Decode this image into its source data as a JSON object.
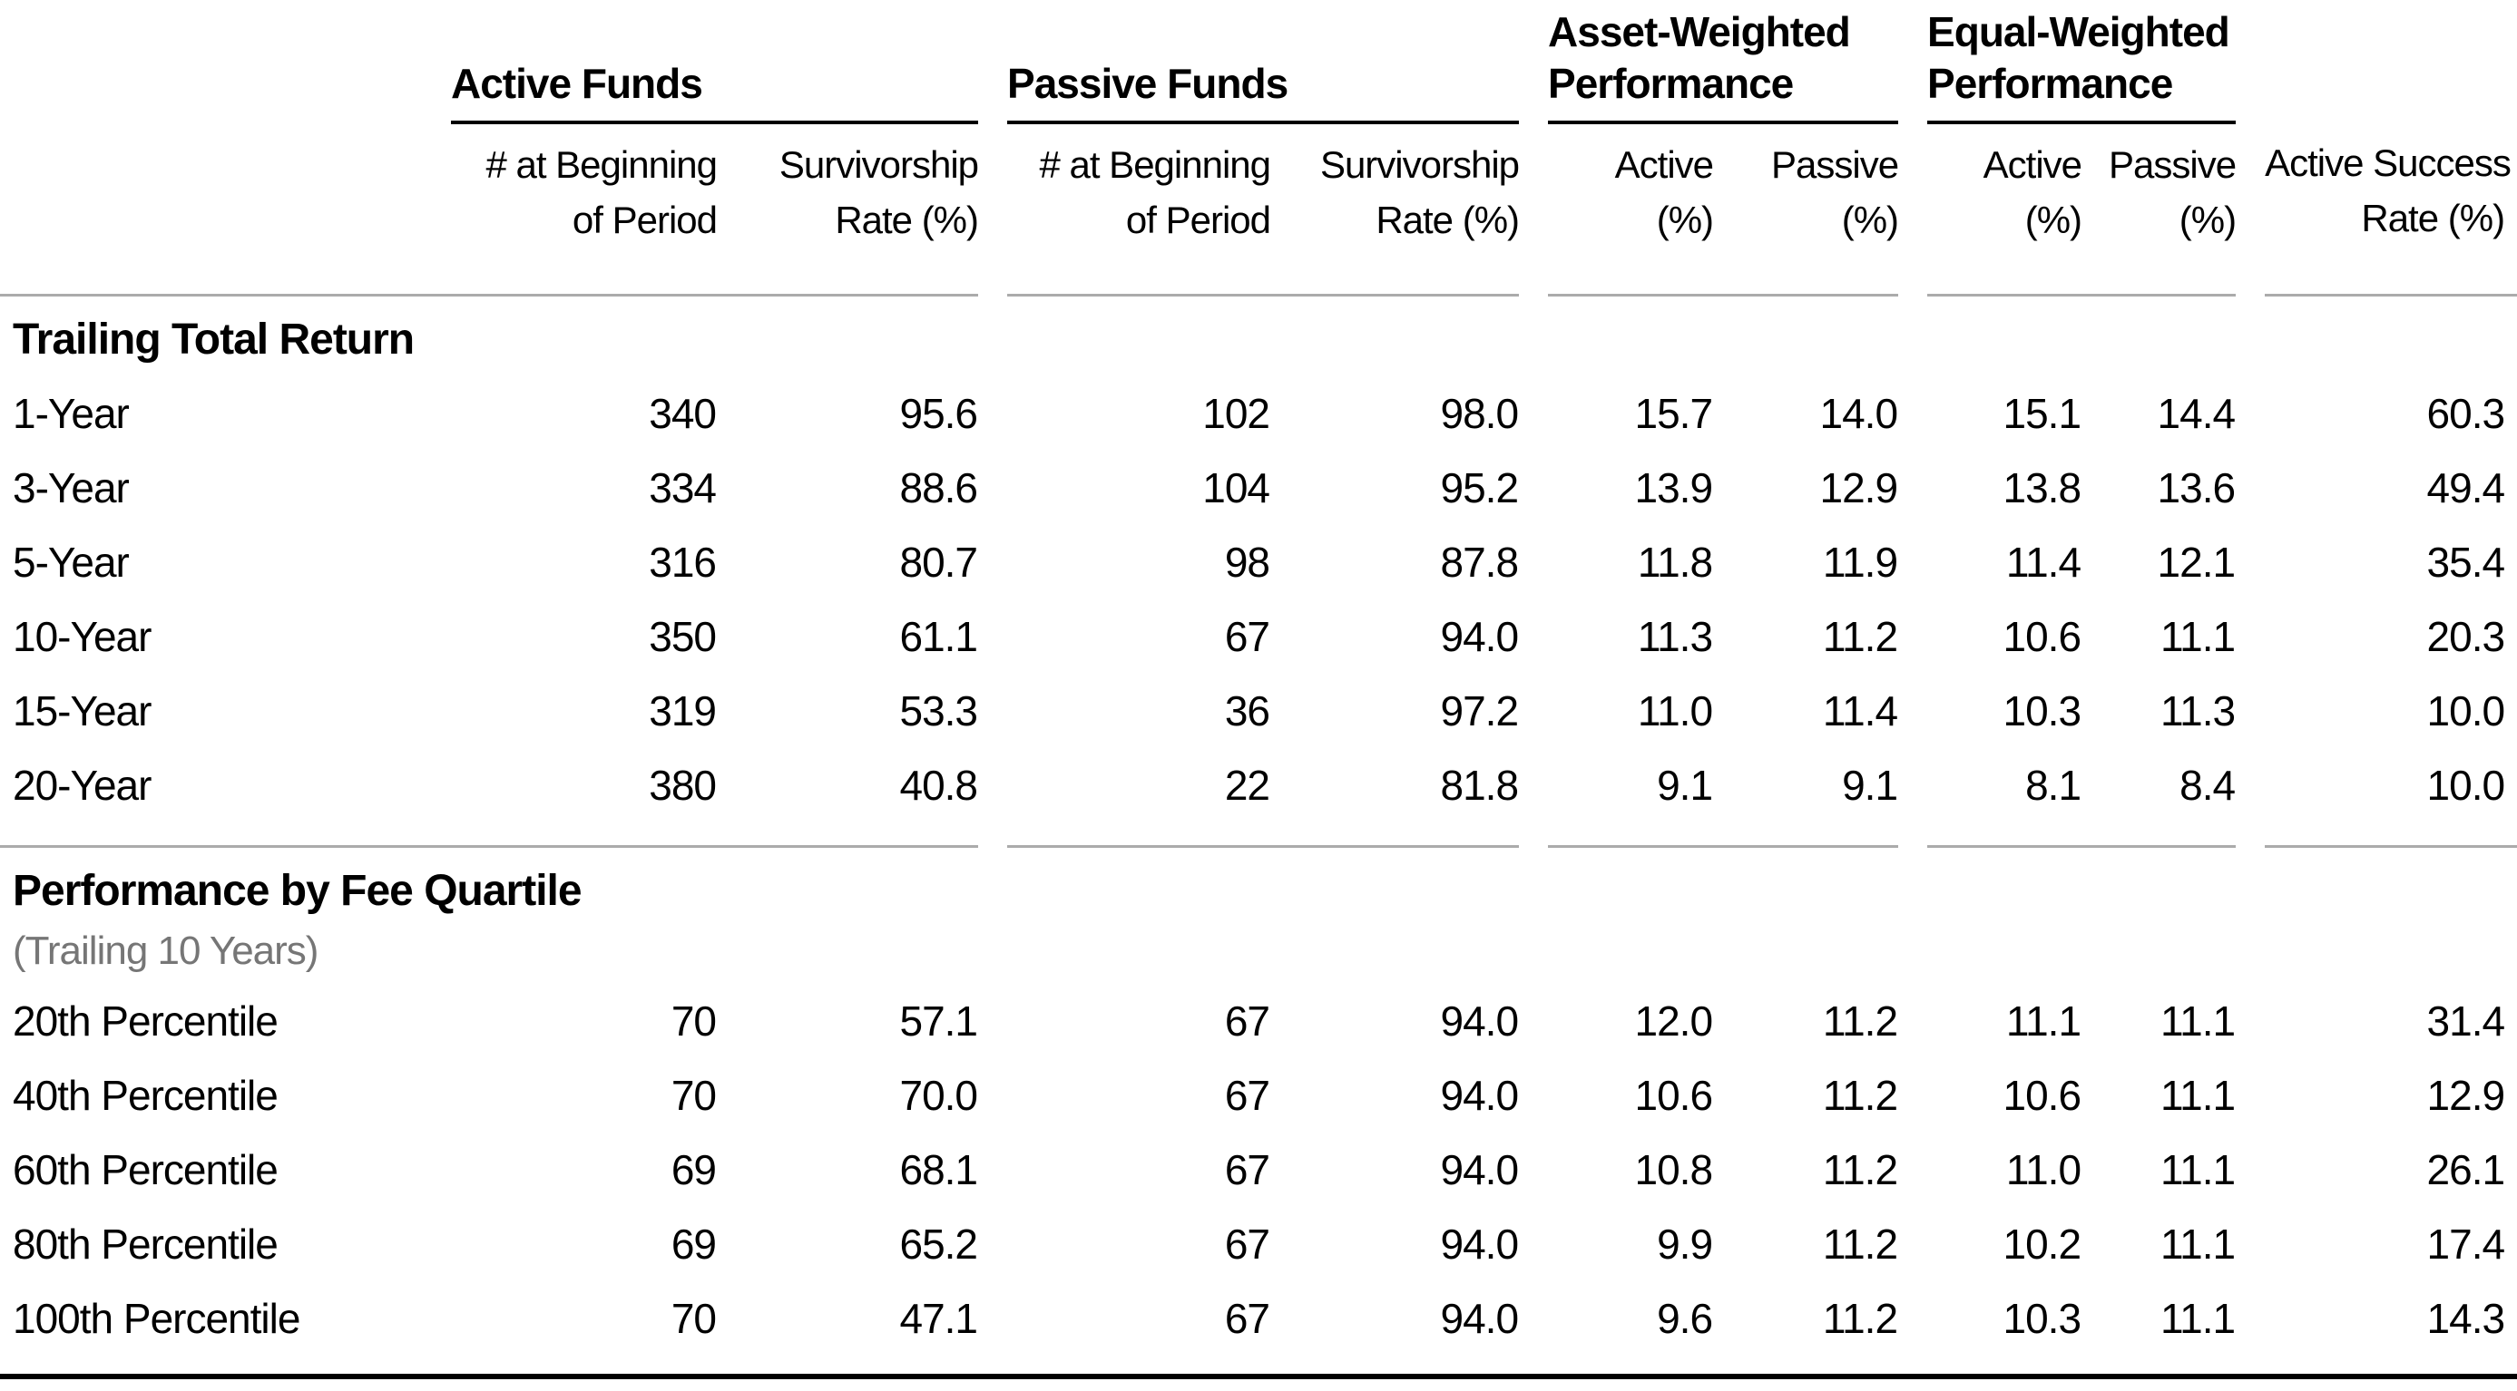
{
  "colors": {
    "text": "#000000",
    "subtitle_gray": "#767676",
    "rule_gray": "#ABABAB",
    "rule_black": "#000000",
    "background": "#FFFFFF"
  },
  "chart_data": {
    "type": "table",
    "groups": [
      {
        "title": "Active Funds"
      },
      {
        "title": "Passive Funds"
      },
      {
        "title": "Asset-Weighted Performance"
      },
      {
        "title": "Equal-Weighted Performance"
      }
    ],
    "columns": [
      {
        "line1": "# at Beginning",
        "line2": "of Period"
      },
      {
        "line1": "Survivorship",
        "line2": "Rate (%)"
      },
      {
        "line1": "# at Beginning",
        "line2": "of Period"
      },
      {
        "line1": "Survivorship",
        "line2": "Rate (%)"
      },
      {
        "line1": "Active",
        "line2": "(%)"
      },
      {
        "line1": "Passive",
        "line2": "(%)"
      },
      {
        "line1": "Active",
        "line2": "(%)"
      },
      {
        "line1": "Passive",
        "line2": "(%)"
      },
      {
        "line1": "Active Success",
        "line2": "Rate (%)"
      }
    ],
    "sections": [
      {
        "title": "Trailing Total Return",
        "subtitle": null,
        "rows": [
          {
            "label": "1-Year",
            "values": [
              "340",
              "95.6",
              "102",
              "98.0",
              "15.7",
              "14.0",
              "15.1",
              "14.4",
              "60.3"
            ]
          },
          {
            "label": "3-Year",
            "values": [
              "334",
              "88.6",
              "104",
              "95.2",
              "13.9",
              "12.9",
              "13.8",
              "13.6",
              "49.4"
            ]
          },
          {
            "label": "5-Year",
            "values": [
              "316",
              "80.7",
              "98",
              "87.8",
              "11.8",
              "11.9",
              "11.4",
              "12.1",
              "35.4"
            ]
          },
          {
            "label": "10-Year",
            "values": [
              "350",
              "61.1",
              "67",
              "94.0",
              "11.3",
              "11.2",
              "10.6",
              "11.1",
              "20.3"
            ]
          },
          {
            "label": "15-Year",
            "values": [
              "319",
              "53.3",
              "36",
              "97.2",
              "11.0",
              "11.4",
              "10.3",
              "11.3",
              "10.0"
            ]
          },
          {
            "label": "20-Year",
            "values": [
              "380",
              "40.8",
              "22",
              "81.8",
              "9.1",
              "9.1",
              "8.1",
              "8.4",
              "10.0"
            ]
          }
        ]
      },
      {
        "title": "Performance by Fee Quartile",
        "subtitle": "(Trailing 10 Years)",
        "rows": [
          {
            "label": "20th Percentile",
            "values": [
              "70",
              "57.1",
              "67",
              "94.0",
              "12.0",
              "11.2",
              "11.1",
              "11.1",
              "31.4"
            ]
          },
          {
            "label": "40th Percentile",
            "values": [
              "70",
              "70.0",
              "67",
              "94.0",
              "10.6",
              "11.2",
              "10.6",
              "11.1",
              "12.9"
            ]
          },
          {
            "label": "60th Percentile",
            "values": [
              "69",
              "68.1",
              "67",
              "94.0",
              "10.8",
              "11.2",
              "11.0",
              "11.1",
              "26.1"
            ]
          },
          {
            "label": "80th Percentile",
            "values": [
              "69",
              "65.2",
              "67",
              "94.0",
              "9.9",
              "11.2",
              "10.2",
              "11.1",
              "17.4"
            ]
          },
          {
            "label": "100th Percentile",
            "values": [
              "70",
              "47.1",
              "67",
              "94.0",
              "9.6",
              "11.2",
              "10.3",
              "11.1",
              "14.3"
            ]
          }
        ]
      }
    ]
  }
}
